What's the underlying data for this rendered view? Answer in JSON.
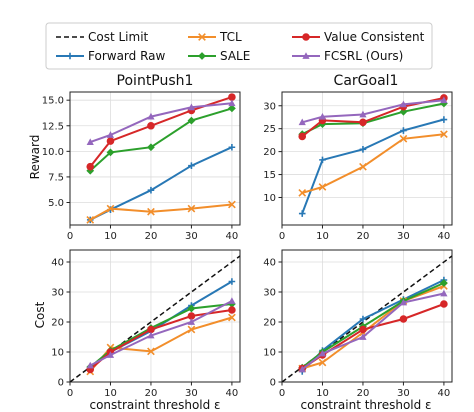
{
  "legend": [
    "Cost Limit",
    "Forward Raw",
    "TCL",
    "SALE",
    "Value Consistent",
    "FCSRL (Ours)"
  ],
  "colors": {
    "Cost Limit": "#111111",
    "Forward Raw": "#2878b5",
    "TCL": "#f28e2b",
    "SALE": "#2ca02c",
    "Value Consistent": "#d62728",
    "FCSRL (Ours)": "#9467bd"
  },
  "chart_data": [
    {
      "type": "line",
      "title": "PointPush1",
      "ylabel": "Reward",
      "xlabel": "",
      "x": [
        5,
        10,
        20,
        30,
        40
      ],
      "xlim": [
        0,
        42
      ],
      "ylim": [
        2.8,
        15.8
      ],
      "xticks": [
        0,
        10,
        20,
        30,
        40
      ],
      "yticks": [
        5.0,
        7.5,
        10.0,
        12.5,
        15.0
      ],
      "ytick_labels": [
        "5.0",
        "7.5",
        "10.0",
        "12.5",
        "15.0"
      ],
      "series": [
        {
          "name": "Forward Raw",
          "values": [
            3.3,
            4.3,
            6.2,
            8.6,
            10.4
          ]
        },
        {
          "name": "TCL",
          "values": [
            3.3,
            4.4,
            4.1,
            4.4,
            4.8
          ]
        },
        {
          "name": "SALE",
          "values": [
            8.1,
            9.9,
            10.4,
            13.0,
            14.2
          ]
        },
        {
          "name": "Value Consistent",
          "values": [
            8.5,
            11.0,
            12.5,
            14.0,
            15.3
          ]
        },
        {
          "name": "FCSRL (Ours)",
          "values": [
            10.9,
            11.6,
            13.4,
            14.3,
            14.7
          ]
        }
      ]
    },
    {
      "type": "line",
      "title": "CarGoal1",
      "ylabel": "",
      "xlabel": "",
      "x": [
        5,
        10,
        20,
        30,
        40
      ],
      "xlim": [
        0,
        42
      ],
      "ylim": [
        4,
        33
      ],
      "xticks": [
        0,
        10,
        20,
        30,
        40
      ],
      "yticks": [
        10,
        15,
        20,
        25,
        30
      ],
      "ytick_labels": [
        "10",
        "15",
        "20",
        "25",
        "30"
      ],
      "series": [
        {
          "name": "Forward Raw",
          "values": [
            6.5,
            18.2,
            20.5,
            24.6,
            27.0
          ]
        },
        {
          "name": "TCL",
          "values": [
            11.0,
            12.3,
            16.7,
            22.8,
            23.8
          ]
        },
        {
          "name": "SALE",
          "values": [
            23.8,
            26.0,
            26.2,
            28.7,
            30.5
          ]
        },
        {
          "name": "Value Consistent",
          "values": [
            23.3,
            26.8,
            26.4,
            29.8,
            31.7
          ]
        },
        {
          "name": "FCSRL (Ours)",
          "values": [
            26.4,
            27.6,
            28.1,
            30.3,
            31.2
          ]
        }
      ]
    },
    {
      "type": "line",
      "title": "",
      "ylabel": "Cost",
      "xlabel": "constraint threshold ε",
      "x": [
        5,
        10,
        20,
        30,
        40
      ],
      "xlim": [
        0,
        42
      ],
      "ylim": [
        0,
        44
      ],
      "xticks": [
        0,
        10,
        20,
        30,
        40
      ],
      "yticks": [
        0,
        10,
        20,
        30,
        40
      ],
      "ytick_labels": [
        "0",
        "10",
        "20",
        "30",
        "40"
      ],
      "series": [
        {
          "name": "Cost Limit",
          "x": [
            0,
            42
          ],
          "values": [
            0,
            42
          ]
        },
        {
          "name": "Forward Raw",
          "values": [
            4.5,
            10.0,
            17.0,
            25.5,
            33.5
          ]
        },
        {
          "name": "TCL",
          "values": [
            3.5,
            11.5,
            10.2,
            17.5,
            21.5
          ]
        },
        {
          "name": "SALE",
          "values": [
            5.0,
            10.5,
            18.0,
            24.5,
            26.0
          ]
        },
        {
          "name": "Value Consistent",
          "values": [
            4.2,
            10.0,
            17.5,
            22.0,
            24.0
          ]
        },
        {
          "name": "FCSRL (Ours)",
          "values": [
            5.5,
            9.0,
            15.5,
            20.0,
            27.0
          ]
        }
      ]
    },
    {
      "type": "line",
      "title": "",
      "ylabel": "",
      "xlabel": "constraint threshold ε",
      "x": [
        5,
        10,
        20,
        30,
        40
      ],
      "xlim": [
        0,
        42
      ],
      "ylim": [
        0,
        44
      ],
      "xticks": [
        0,
        10,
        20,
        30,
        40
      ],
      "yticks": [
        0,
        10,
        20,
        30,
        40
      ],
      "ytick_labels": [
        "0",
        "10",
        "20",
        "30",
        "40"
      ],
      "series": [
        {
          "name": "Cost Limit",
          "x": [
            0,
            42
          ],
          "values": [
            0,
            42
          ]
        },
        {
          "name": "Forward Raw",
          "values": [
            3.5,
            10.5,
            21.0,
            27.5,
            34.0
          ]
        },
        {
          "name": "TCL",
          "values": [
            4.5,
            6.5,
            16.5,
            27.0,
            32.0
          ]
        },
        {
          "name": "SALE",
          "values": [
            4.8,
            10.0,
            18.5,
            27.0,
            33.0
          ]
        },
        {
          "name": "Value Consistent",
          "values": [
            4.5,
            9.0,
            17.5,
            21.0,
            26.0
          ]
        },
        {
          "name": "FCSRL (Ours)",
          "values": [
            4.2,
            9.5,
            15.0,
            26.5,
            29.5
          ]
        }
      ]
    }
  ]
}
